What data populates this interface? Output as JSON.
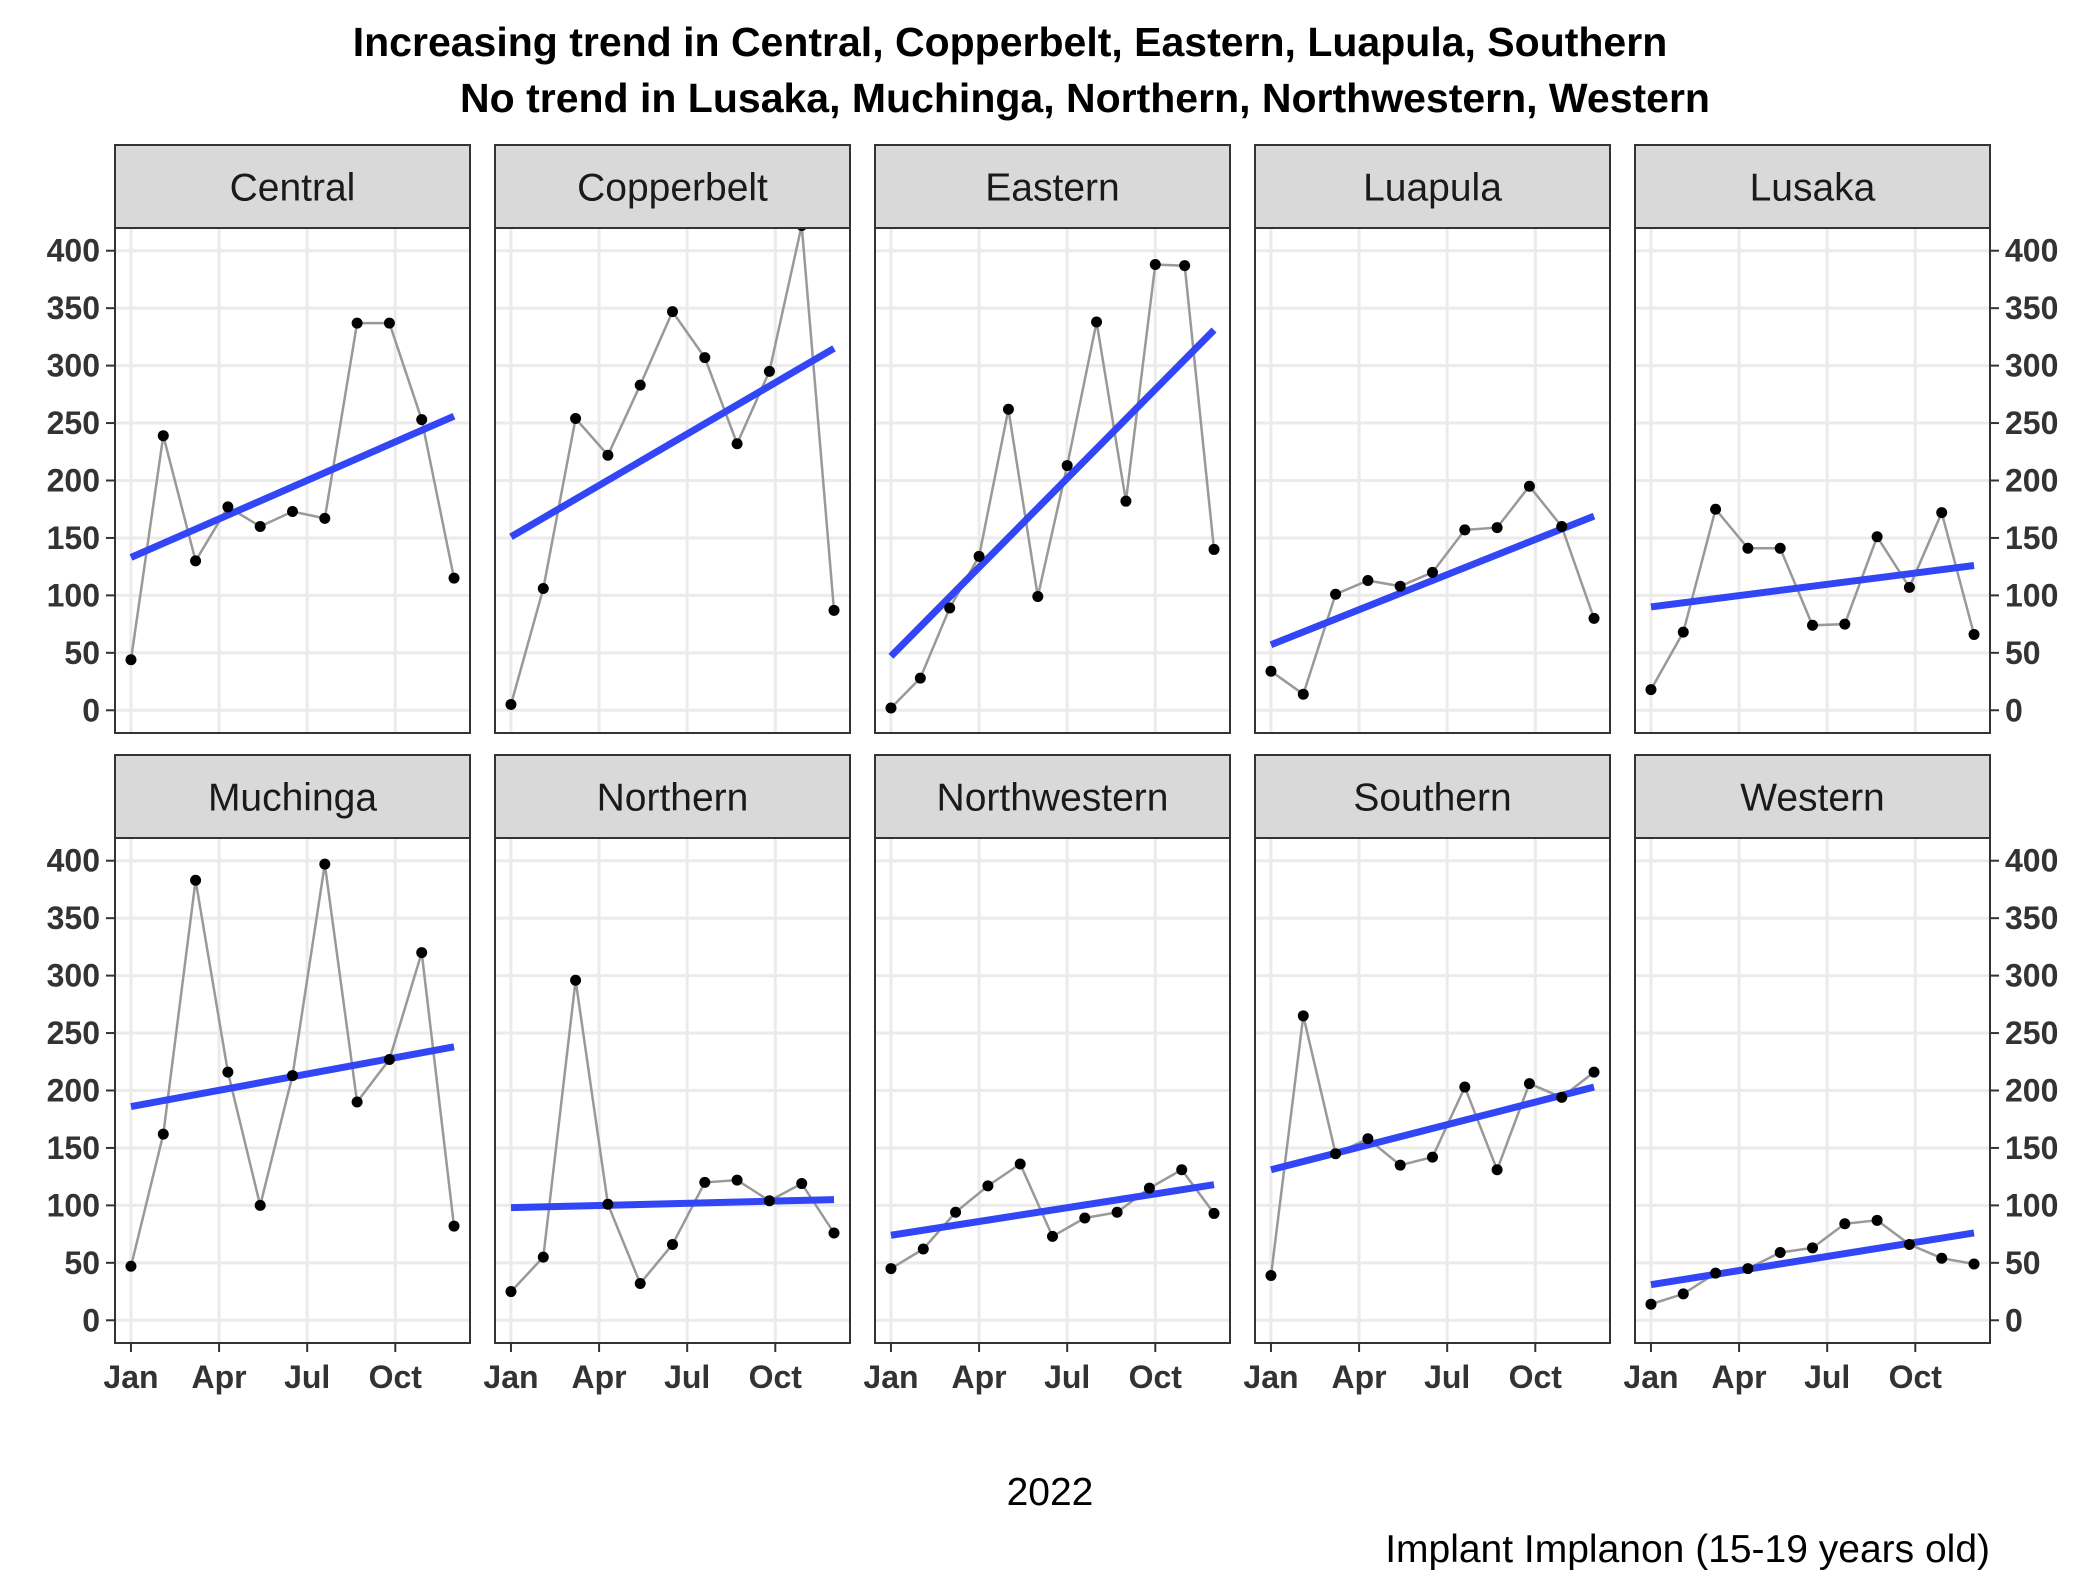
{
  "chart_data": {
    "type": "line",
    "title_lines": [
      "Increasing trend in Central, Copperbelt, Eastern, Luapula, Southern",
      "No trend in Lusaka, Muchinga, Northern, Northwestern, Western"
    ],
    "xlabel": "2022",
    "caption": "Implant Implanon (15-19 years old)",
    "x_tick_labels": [
      "Jan",
      "Apr",
      "Jul",
      "Oct"
    ],
    "x_months": [
      1,
      2,
      3,
      4,
      5,
      6,
      7,
      8,
      9,
      10,
      11,
      12
    ],
    "ylim": [
      0,
      400
    ],
    "y_ticks": [
      0,
      50,
      100,
      150,
      200,
      250,
      300,
      350,
      400
    ],
    "grid": true,
    "colors": {
      "data_line": "#999999",
      "point": "#000000",
      "trend_line": "#3246F5",
      "strip_fill": "#D9D9D9",
      "grid": "#EBEBEB"
    },
    "panels": [
      {
        "name": "Central",
        "values": [
          44,
          239,
          130,
          177,
          160,
          173,
          167,
          337,
          337,
          253,
          115
        ],
        "trend": [
          133,
          256
        ]
      },
      {
        "name": "Copperbelt",
        "values": [
          5,
          106,
          254,
          222,
          283,
          347,
          307,
          232,
          295,
          422,
          87
        ],
        "trend": [
          151,
          315
        ]
      },
      {
        "name": "Eastern",
        "values": [
          2,
          28,
          89,
          134,
          262,
          99,
          213,
          338,
          182,
          388,
          387,
          140
        ],
        "trend": [
          47,
          331
        ]
      },
      {
        "name": "Luapula",
        "values": [
          34,
          14,
          101,
          113,
          108,
          120,
          157,
          159,
          195,
          160,
          80
        ],
        "trend": [
          57,
          169
        ]
      },
      {
        "name": "Lusaka",
        "values": [
          18,
          68,
          175,
          141,
          141,
          74,
          75,
          151,
          107,
          172,
          66
        ],
        "trend": [
          90,
          126
        ]
      },
      {
        "name": "Muchinga",
        "values": [
          47,
          162,
          383,
          216,
          100,
          213,
          397,
          190,
          227,
          320,
          82
        ],
        "trend": [
          186,
          238
        ]
      },
      {
        "name": "Northern",
        "values": [
          25,
          55,
          296,
          101,
          32,
          66,
          120,
          122,
          104,
          119,
          76
        ],
        "trend": [
          98,
          105
        ]
      },
      {
        "name": "Northwestern",
        "values": [
          45,
          62,
          94,
          117,
          136,
          73,
          89,
          94,
          115,
          131,
          93
        ],
        "trend": [
          74,
          118
        ]
      },
      {
        "name": "Southern",
        "values": [
          39,
          265,
          145,
          158,
          135,
          142,
          203,
          131,
          206,
          194,
          216
        ],
        "trend": [
          131,
          203
        ]
      },
      {
        "name": "Western",
        "values": [
          14,
          23,
          41,
          45,
          59,
          63,
          84,
          87,
          66,
          54,
          49
        ],
        "trend": [
          31,
          76
        ]
      }
    ]
  }
}
